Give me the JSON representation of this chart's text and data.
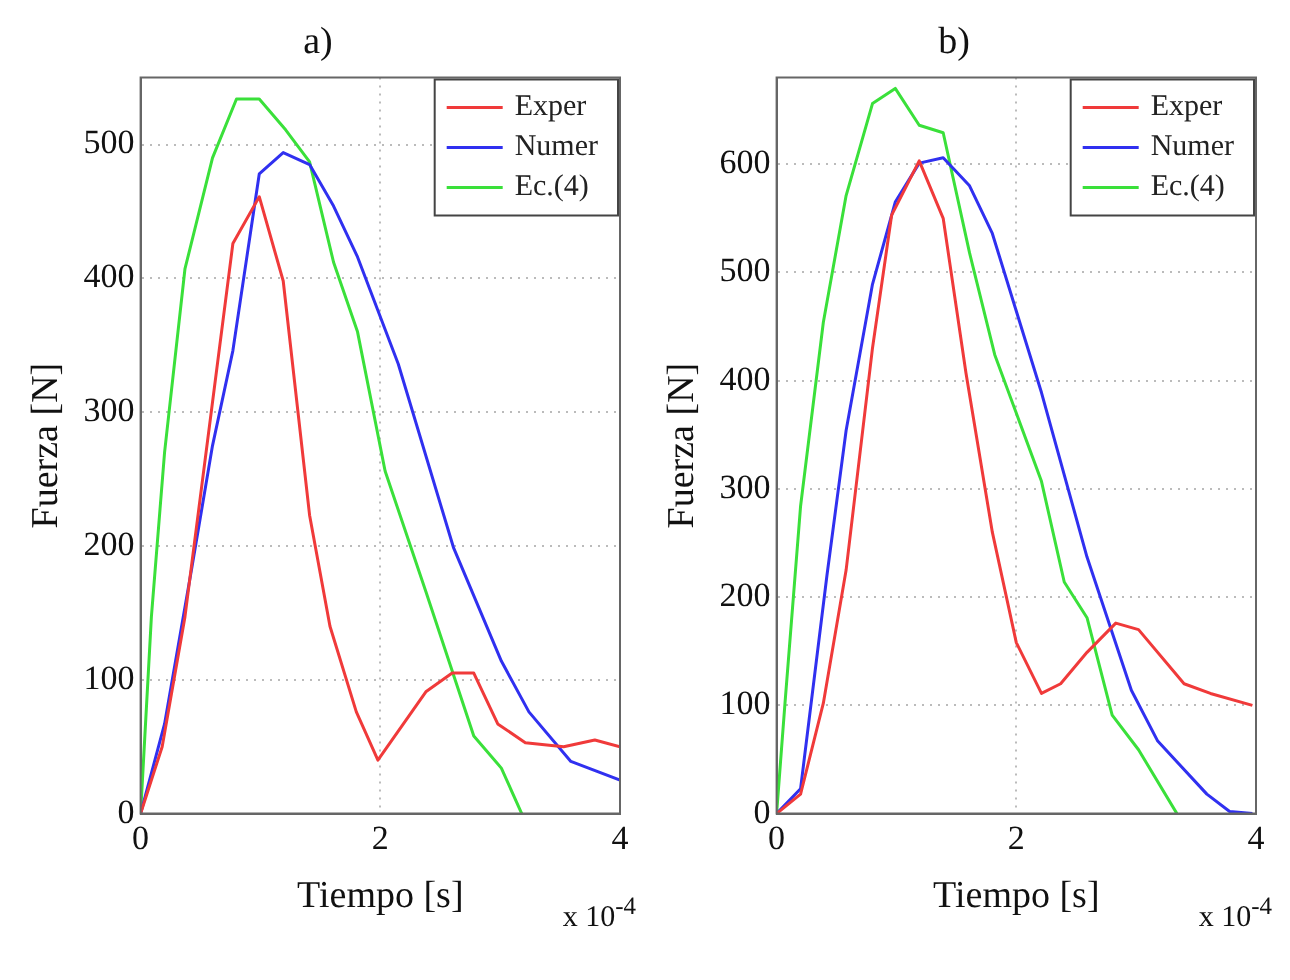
{
  "chart_data": [
    {
      "type": "line",
      "title": "a)",
      "xlabel": "Tiempo [s]",
      "ylabel": "Fuerza [N]",
      "annotations": [
        "x 10$^{-4}$"
      ],
      "xlim": [
        0,
        4
      ],
      "xticks": [
        0,
        2,
        4
      ],
      "ylim": [
        0,
        550
      ],
      "yticks": [
        0,
        100,
        200,
        300,
        400,
        500
      ],
      "grid": true,
      "legend": "top right",
      "marker": "none",
      "line_style": "solid",
      "series": [
        {
          "name": "Exper",
          "color": "#f03a3a",
          "x": [
            0,
            0.18,
            0.37,
            0.77,
            0.99,
            1.19,
            1.41,
            1.58,
            1.8,
            1.98,
            2.38,
            2.6,
            2.78,
            2.98,
            3.21,
            3.53,
            3.79,
            4
          ],
          "values": [
            0,
            50,
            147,
            426,
            461,
            398,
            223,
            140,
            76,
            40,
            91,
            105,
            105,
            67,
            53,
            50,
            55,
            50
          ]
        },
        {
          "name": "Numer",
          "color": "#3030f0",
          "x": [
            0,
            0.2,
            0.43,
            0.6,
            0.77,
            0.99,
            1.19,
            1.41,
            1.61,
            1.81,
            2.15,
            2.61,
            3.01,
            3.24,
            3.59,
            4
          ],
          "values": [
            0,
            67,
            185,
            275,
            346,
            478,
            494,
            485,
            454,
            416,
            336,
            199,
            114,
            76,
            39,
            25
          ]
        },
        {
          "name": "Ec.(4)",
          "color": "#3ae03a",
          "x": [
            0,
            0.09,
            0.2,
            0.37,
            0.6,
            0.8,
            0.99,
            1.21,
            1.41,
            1.61,
            1.81,
            2.04,
            2.38,
            2.78,
            3.01,
            3.18
          ],
          "values": [
            0,
            147,
            270,
            407,
            490,
            534,
            534,
            511,
            487,
            412,
            360,
            256,
            166,
            58,
            34,
            0
          ]
        }
      ]
    },
    {
      "type": "line",
      "title": "b)",
      "xlabel": "Tiempo [s]",
      "ylabel": "Fuerza [N]",
      "annotations": [
        "x 10$^{-4}$"
      ],
      "xlim": [
        0,
        4
      ],
      "xticks": [
        0,
        2,
        4
      ],
      "ylim": [
        0,
        680
      ],
      "yticks": [
        0,
        100,
        200,
        300,
        400,
        500,
        600
      ],
      "grid": true,
      "legend": "top right",
      "marker": "none",
      "line_style": "solid",
      "series": [
        {
          "name": "Exper",
          "color": "#f03a3a",
          "x": [
            0,
            0.2,
            0.39,
            0.58,
            0.8,
            0.96,
            1.19,
            1.39,
            1.58,
            1.8,
            2,
            2.21,
            2.37,
            2.59,
            2.83,
            3.02,
            3.4,
            3.62,
            3.97
          ],
          "values": [
            0,
            18,
            102,
            225,
            430,
            553,
            603,
            550,
            407,
            260,
            158,
            111,
            120,
            149,
            176,
            170,
            120,
            111,
            100
          ]
        },
        {
          "name": "Numer",
          "color": "#3030f0",
          "x": [
            0,
            0.2,
            0.42,
            0.58,
            0.8,
            0.99,
            1.19,
            1.39,
            1.61,
            1.8,
            2.21,
            2.59,
            2.96,
            3.18,
            3.59,
            3.78,
            3.97
          ],
          "values": [
            0,
            23,
            220,
            354,
            489,
            565,
            601,
            606,
            580,
            536,
            389,
            237,
            114,
            67,
            18,
            2,
            0
          ]
        },
        {
          "name": "Ec.(4)",
          "color": "#3ae03a",
          "x": [
            0,
            0.07,
            0.2,
            0.39,
            0.58,
            0.8,
            0.99,
            1.19,
            1.39,
            1.61,
            1.82,
            2.21,
            2.4,
            2.59,
            2.8,
            3.02,
            3.34
          ],
          "values": [
            0,
            102,
            284,
            454,
            571,
            656,
            670,
            636,
            629,
            518,
            424,
            307,
            214,
            181,
            91,
            59,
            0
          ]
        }
      ]
    }
  ]
}
